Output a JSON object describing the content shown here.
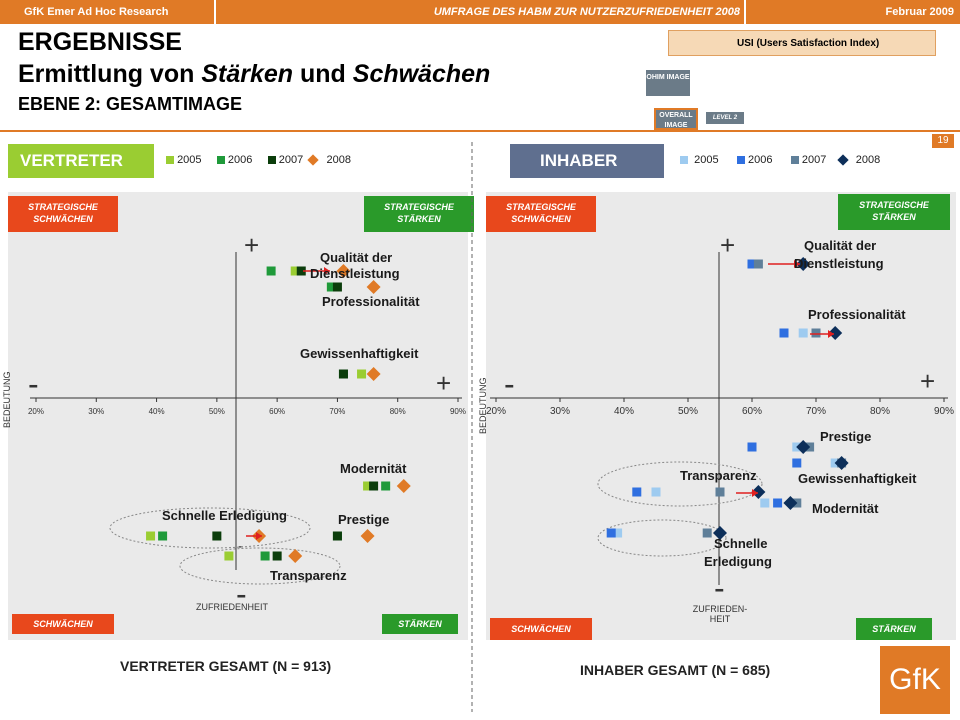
{
  "header": {
    "left": "GfK Emer Ad Hoc Research",
    "center": "UMFRAGE DES HABM ZUR NUTZERZUFRIEDENHEIT 2008",
    "right": "Februar 2009"
  },
  "title": {
    "line1": "ERGEBNISSE",
    "line2": "Ermittlung von Stärken und Schwächen",
    "line3": "EBENE 2: GESAMTIMAGE"
  },
  "diagram": {
    "usi": "USI (Users Satisfaction Index)",
    "ohim": "OHIM IMAGE",
    "overall": "OVERALL IMAGE",
    "level": "LEVEL 2"
  },
  "page_number": "19",
  "quadrant_labels": {
    "strat_weak": "STRATEGISCHE SCHWÄCHEN",
    "strat_strong": "STRATEGISCHE STÄRKEN",
    "weak": "SCHWÄCHEN",
    "strong": "STÄRKEN",
    "plus": "+",
    "minus": "-",
    "bedeutung": "BEDEUTUNG"
  },
  "colors": {
    "orange": "#e07a26",
    "green2005": "#9acd32",
    "green2006": "#1f9a3a",
    "green2007": "#0b3d0b",
    "blue2005": "#9ecbf0",
    "blue2006": "#2f6fe0",
    "blue2007": "#5f7f99",
    "blue2008": "#0d2f5a"
  },
  "chart_data": [
    {
      "type": "scatter",
      "title": "VERTRETER",
      "footer": "VERTRETER GESAMT (N = 913)",
      "xlabel": "ZUFRIEDENHEIT",
      "ylabel": "BEDEUTUNG",
      "x_ticks": [
        "20%",
        "30%",
        "40%",
        "50%",
        "60%",
        "70%",
        "80%",
        "90%"
      ],
      "xlim": [
        0.2,
        0.9
      ],
      "years": [
        "2005",
        "2006",
        "2007",
        "2008"
      ],
      "items": [
        {
          "label": "Qualität der Dienstleistung",
          "values": {
            "2006": 0.59,
            "2005": 0.63,
            "2007": 0.64,
            "2008": 0.71
          }
        },
        {
          "label": "Professionalität",
          "values": {
            "2005": 0.69,
            "2006": 0.69,
            "2007": 0.7,
            "2008": 0.76
          }
        },
        {
          "label": "Gewissenhaftigkeit",
          "values": {
            "2006": 0.71,
            "2007": 0.71,
            "2005": 0.74,
            "2008": 0.76
          }
        },
        {
          "label": "Modernität",
          "values": {
            "2005": 0.75,
            "2007": 0.76,
            "2006": 0.78,
            "2008": 0.81
          }
        },
        {
          "label": "Prestige",
          "values": {
            "2006": 0.7,
            "2007": 0.7,
            "2008": 0.75
          }
        },
        {
          "label": "Schnelle Erledigung",
          "values": {
            "2005": 0.39,
            "2006": 0.41,
            "2007": 0.5,
            "2008": 0.57
          }
        },
        {
          "label": "Transparenz",
          "values": {
            "2005": 0.52,
            "2006": 0.58,
            "2007": 0.6,
            "2008": 0.63
          }
        }
      ]
    },
    {
      "type": "scatter",
      "title": "INHABER",
      "footer": "INHABER GESAMT (N = 685)",
      "xlabel": "ZUFRIEDEN-HEIT",
      "ylabel": "BEDEUTUNG",
      "x_ticks": [
        "20%",
        "30%",
        "40%",
        "50%",
        "60%",
        "70%",
        "80%",
        "90%"
      ],
      "xlim": [
        0.2,
        0.9
      ],
      "years": [
        "2005",
        "2006",
        "2007",
        "2008"
      ],
      "items": [
        {
          "label": "Qualität der Dienstleistung",
          "values": {
            "2006": 0.6,
            "2007": 0.61,
            "2008": 0.68
          }
        },
        {
          "label": "Professionalität",
          "values": {
            "2006": 0.65,
            "2005": 0.68,
            "2007": 0.7,
            "2008": 0.73
          }
        },
        {
          "label": "Prestige",
          "values": {
            "2006": 0.6,
            "2005": 0.67,
            "2007": 0.69,
            "2008": 0.68
          }
        },
        {
          "label": "Gewissenhaftigkeit",
          "values": {
            "2006": 0.67,
            "2005": 0.73,
            "2007": 0.74,
            "2008": 0.74
          }
        },
        {
          "label": "Transparenz",
          "values": {
            "2006": 0.42,
            "2005": 0.45,
            "2007": 0.55,
            "2008": 0.61
          }
        },
        {
          "label": "Modernität",
          "values": {
            "2005": 0.62,
            "2006": 0.64,
            "2007": 0.67,
            "2008": 0.66
          }
        },
        {
          "label": "Schnelle Erledigung",
          "values": {
            "2006": 0.38,
            "2005": 0.39,
            "2007": 0.53,
            "2008": 0.55
          }
        }
      ]
    }
  ]
}
